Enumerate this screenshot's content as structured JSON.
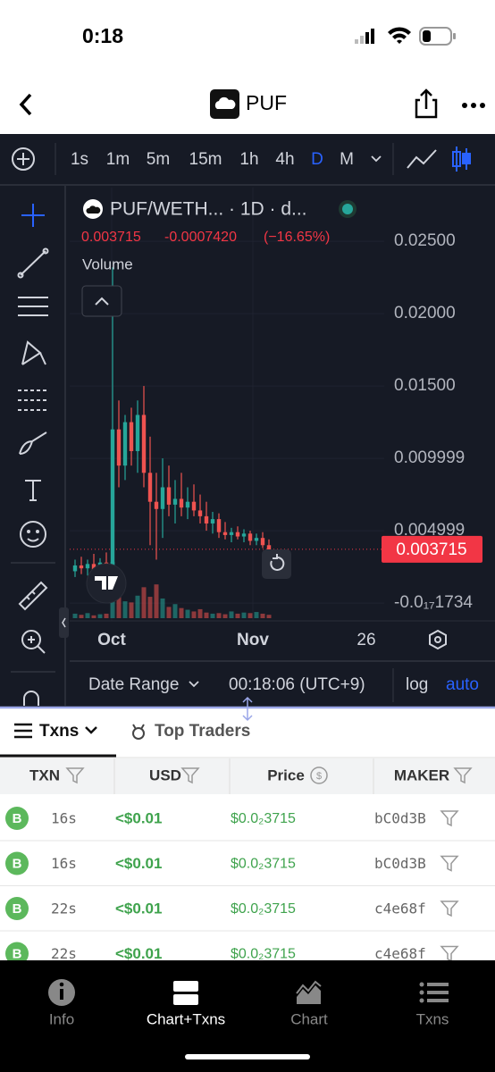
{
  "status_bar": {
    "time": "0:18"
  },
  "header": {
    "title": "PUF"
  },
  "toolbar": {
    "intervals": [
      "1s",
      "1m",
      "5m",
      "15m",
      "1h",
      "4h",
      "D",
      "M"
    ],
    "active_interval": 6
  },
  "chart": {
    "type": "candlestick",
    "symbol": "PUF/WETH... · 1D · d...",
    "quote": {
      "last": "0.003715",
      "change": "-0.0007420",
      "change_pct": "(−16.65%)"
    },
    "volume_label": "Volume",
    "ylim": [
      -0.00123,
      0.0284
    ],
    "yticks": [
      {
        "value": 0.025,
        "label": "0.02500"
      },
      {
        "value": 0.02,
        "label": "0.02000"
      },
      {
        "value": 0.015,
        "label": "0.01500"
      },
      {
        "value": 0.009999,
        "label": "0.009999"
      },
      {
        "value": 0.004999,
        "label": "0.004999"
      },
      {
        "value": -1.734e-18,
        "label": "-0.0₁₇1734"
      }
    ],
    "xticks": [
      "Oct",
      "Nov",
      "26"
    ],
    "up_color": "#26a69a",
    "down_color": "#ef5350",
    "candles": [
      {
        "open": 0.0022,
        "high": 0.003,
        "low": 0.0018,
        "close": 0.0026,
        "volume": 8
      },
      {
        "open": 0.0026,
        "high": 0.0032,
        "low": 0.002,
        "close": 0.0024,
        "volume": 6
      },
      {
        "open": 0.0024,
        "high": 0.003,
        "low": 0.0019,
        "close": 0.0027,
        "volume": 9
      },
      {
        "open": 0.0027,
        "high": 0.0034,
        "low": 0.0022,
        "close": 0.0023,
        "volume": 5
      },
      {
        "open": 0.0023,
        "high": 0.0031,
        "low": 0.0018,
        "close": 0.0028,
        "volume": 7
      },
      {
        "open": 0.0028,
        "high": 0.0035,
        "low": 0.0022,
        "close": 0.0025,
        "volume": 8
      },
      {
        "open": 0.0025,
        "high": 0.0232,
        "low": 0.002,
        "close": 0.012,
        "volume": 100
      },
      {
        "open": 0.012,
        "high": 0.014,
        "low": 0.008,
        "close": 0.0095,
        "volume": 45
      },
      {
        "open": 0.0095,
        "high": 0.013,
        "low": 0.0085,
        "close": 0.0125,
        "volume": 30
      },
      {
        "open": 0.0125,
        "high": 0.0135,
        "low": 0.0095,
        "close": 0.0105,
        "volume": 28
      },
      {
        "open": 0.0105,
        "high": 0.014,
        "low": 0.009,
        "close": 0.013,
        "volume": 40
      },
      {
        "open": 0.013,
        "high": 0.015,
        "low": 0.008,
        "close": 0.009,
        "volume": 55
      },
      {
        "open": 0.009,
        "high": 0.0115,
        "low": 0.004,
        "close": 0.007,
        "volume": 38
      },
      {
        "open": 0.007,
        "high": 0.009,
        "low": 0.003,
        "close": 0.0065,
        "volume": 60
      },
      {
        "open": 0.0065,
        "high": 0.01,
        "low": 0.0045,
        "close": 0.008,
        "volume": 35
      },
      {
        "open": 0.008,
        "high": 0.0095,
        "low": 0.006,
        "close": 0.0068,
        "volume": 20
      },
      {
        "open": 0.0068,
        "high": 0.0085,
        "low": 0.0055,
        "close": 0.0072,
        "volume": 25
      },
      {
        "open": 0.0072,
        "high": 0.009,
        "low": 0.006,
        "close": 0.0066,
        "volume": 18
      },
      {
        "open": 0.0066,
        "high": 0.008,
        "low": 0.0058,
        "close": 0.007,
        "volume": 15
      },
      {
        "open": 0.007,
        "high": 0.0082,
        "low": 0.006,
        "close": 0.0064,
        "volume": 12
      },
      {
        "open": 0.0064,
        "high": 0.0075,
        "low": 0.0055,
        "close": 0.006,
        "volume": 16
      },
      {
        "open": 0.006,
        "high": 0.007,
        "low": 0.005,
        "close": 0.0055,
        "volume": 10
      },
      {
        "open": 0.0055,
        "high": 0.0063,
        "low": 0.0048,
        "close": 0.0058,
        "volume": 8
      },
      {
        "open": 0.0058,
        "high": 0.0062,
        "low": 0.0045,
        "close": 0.0049,
        "volume": 9
      },
      {
        "open": 0.0049,
        "high": 0.0056,
        "low": 0.0044,
        "close": 0.0047,
        "volume": 7
      },
      {
        "open": 0.0047,
        "high": 0.0052,
        "low": 0.0042,
        "close": 0.0049,
        "volume": 12
      },
      {
        "open": 0.0049,
        "high": 0.0053,
        "low": 0.0044,
        "close": 0.0046,
        "volume": 8
      },
      {
        "open": 0.0046,
        "high": 0.0051,
        "low": 0.0042,
        "close": 0.0048,
        "volume": 10
      },
      {
        "open": 0.0048,
        "high": 0.005,
        "low": 0.004,
        "close": 0.0043,
        "volume": 9
      },
      {
        "open": 0.0043,
        "high": 0.0048,
        "low": 0.004,
        "close": 0.0045,
        "volume": 11
      },
      {
        "open": 0.0045,
        "high": 0.0049,
        "low": 0.0038,
        "close": 0.004,
        "volume": 8
      },
      {
        "open": 0.004,
        "high": 0.0044,
        "low": 0.0036,
        "close": 0.0037,
        "volume": 6
      }
    ],
    "price_line": {
      "value": 0.003715,
      "label": "0.003715"
    }
  },
  "range_bar": {
    "date_range": "Date Range",
    "time": "00:18:06 (UTC+9)",
    "log": "log",
    "auto": "auto"
  },
  "tabs": [
    "Txns",
    "Top Traders"
  ],
  "table": {
    "headers": [
      "TXN",
      "USD",
      "Price",
      "MAKER"
    ],
    "rows": [
      [
        "B",
        "16s",
        "<$0.01",
        "$0.0₂3715",
        "bC0d3B"
      ],
      [
        "B",
        "16s",
        "<$0.01",
        "$0.0₂3715",
        "bC0d3B"
      ],
      [
        "B",
        "22s",
        "<$0.01",
        "$0.0₂3715",
        "c4e68f"
      ],
      [
        "B",
        "22s",
        "<$0.01",
        "$0.0₂3715",
        "c4e68f"
      ]
    ]
  },
  "nav": [
    "Info",
    "Chart+Txns",
    "Chart",
    "Txns"
  ]
}
